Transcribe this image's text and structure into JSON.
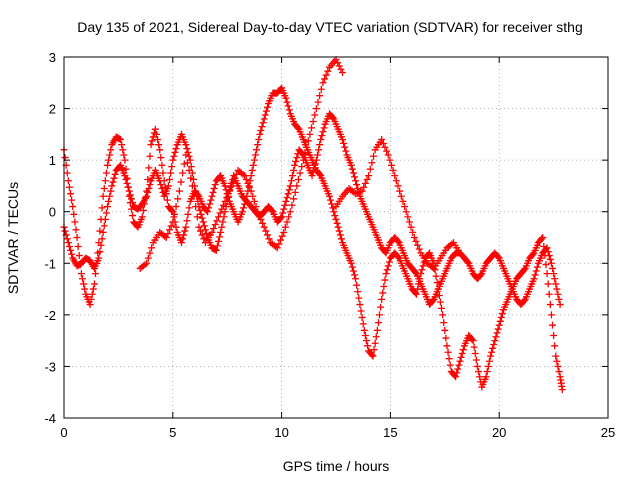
{
  "chart_data": {
    "type": "scatter",
    "title": "Day 135 of 2021, Sidereal Day-to-day VTEC variation (SDTVAR) for receiver sthg",
    "xlabel": "GPS time / hours",
    "ylabel": "SDTVAR / TECUs",
    "xlim": [
      0,
      25
    ],
    "ylim": [
      -4,
      3
    ],
    "xticks": [
      "0",
      "5",
      "10",
      "15",
      "20",
      "25"
    ],
    "yticks": [
      "-4",
      "-3",
      "-2",
      "-1",
      "0",
      "1",
      "2",
      "3"
    ],
    "grid": true,
    "marker": "plus",
    "series": [
      {
        "name": "SDTVAR",
        "color": "#ff0000",
        "traces": [
          {
            "x": [
              0.0,
              0.2,
              0.4,
              0.6,
              0.8,
              1.0,
              1.2,
              1.4,
              1.6,
              1.8,
              2.0,
              2.2,
              2.4,
              2.6,
              2.8,
              3.0,
              3.2,
              3.4,
              3.6,
              3.8,
              4.0,
              4.2,
              4.4,
              4.6,
              4.8,
              5.0,
              5.2,
              5.4,
              5.6,
              5.8,
              6.0,
              6.2,
              6.4,
              6.6,
              6.8,
              7.0,
              7.2,
              7.4,
              7.6,
              7.8,
              8.0,
              8.2,
              8.4,
              8.6,
              8.8,
              9.0,
              9.2,
              9.4,
              9.6,
              9.8,
              10.0,
              10.2,
              10.4,
              10.6,
              10.8,
              11.0,
              11.2,
              11.4,
              11.6,
              11.8,
              12.0,
              12.2,
              12.4,
              12.6,
              12.8,
              13.0,
              13.2,
              13.4,
              13.6,
              13.8,
              14.0,
              14.2,
              14.4,
              14.6,
              14.8,
              15.0,
              15.2,
              15.4,
              15.6,
              15.8,
              16.0,
              16.2,
              16.4,
              16.6,
              16.8,
              17.0,
              17.2,
              17.4,
              17.6,
              17.8,
              18.0,
              18.2,
              18.4,
              18.6,
              18.8,
              19.0,
              19.2,
              19.4,
              19.6,
              19.8,
              20.0,
              20.2,
              20.4,
              20.6,
              20.8,
              21.0,
              21.2,
              21.4,
              21.6,
              21.8,
              22.0,
              22.2,
              22.4,
              22.6,
              22.8,
              22.9
            ],
            "y": [
              1.2,
              0.6,
              0.1,
              -0.5,
              -1.2,
              -1.6,
              -1.8,
              -1.4,
              -0.6,
              0.3,
              0.9,
              1.3,
              1.45,
              1.4,
              1.0,
              0.3,
              -0.2,
              -0.3,
              -0.1,
              0.4,
              1.3,
              1.6,
              1.2,
              0.6,
              0.1,
              0.0,
              -0.4,
              -0.6,
              -0.3,
              0.2,
              0.4,
              0.3,
              0.1,
              0.0,
              0.3,
              0.6,
              0.7,
              0.5,
              0.2,
              0.0,
              -0.2,
              0.0,
              0.3,
              0.7,
              1.1,
              1.5,
              1.8,
              2.1,
              2.3,
              2.3,
              2.4,
              2.2,
              1.9,
              1.7,
              1.6,
              1.4,
              1.2,
              1.0,
              0.8,
              0.7,
              0.5,
              0.3,
              0.0,
              -0.3,
              -0.6,
              -0.8,
              -1.0,
              -1.3,
              -1.8,
              -2.3,
              -2.7,
              -2.8,
              -2.3,
              -1.7,
              -1.2,
              -0.9,
              -0.8,
              -0.9,
              -1.1,
              -1.3,
              -1.5,
              -1.6,
              -1.2,
              -0.9,
              -0.8,
              -1.0,
              -1.5,
              -2.0,
              -2.6,
              -3.1,
              -3.2,
              -2.9,
              -2.6,
              -2.4,
              -2.5,
              -3.0,
              -3.4,
              -3.2,
              -2.8,
              -2.5,
              -2.2,
              -1.9,
              -1.7,
              -1.5,
              -1.3,
              -1.2,
              -1.1,
              -0.9,
              -0.8,
              -0.6,
              -0.5,
              -1.2,
              -2.0,
              -2.8,
              -3.2,
              -3.45
            ]
          },
          {
            "x": [
              0.0,
              0.2,
              0.4,
              0.6,
              0.8,
              1.0,
              1.2,
              1.4,
              1.6,
              1.8,
              2.0,
              2.2,
              2.4,
              2.6,
              2.8,
              3.0,
              3.2,
              3.4,
              3.6,
              3.8,
              4.0,
              4.2,
              4.4,
              4.6,
              4.8,
              5.0,
              5.2,
              5.4,
              5.6,
              5.8,
              6.0,
              6.2,
              6.4,
              6.6,
              6.8,
              7.0,
              7.2,
              7.4,
              7.6,
              7.8,
              8.0,
              8.2,
              8.4,
              8.6,
              8.8,
              9.0,
              9.2,
              9.4,
              9.6,
              9.8,
              10.0,
              10.2,
              10.4,
              10.6,
              10.8,
              11.0,
              11.2,
              11.4,
              11.6,
              11.8,
              12.0,
              12.2,
              12.4,
              12.6,
              12.8,
              13.0,
              13.2,
              13.4,
              13.6,
              13.8,
              14.0,
              14.2,
              14.4,
              14.6,
              14.8,
              15.0,
              15.2,
              15.4,
              15.6,
              15.8,
              16.0,
              16.2,
              16.4,
              16.6,
              16.8,
              17.0,
              17.2,
              17.4,
              17.6,
              17.8,
              18.0,
              18.2,
              18.4,
              18.6,
              18.8,
              19.0,
              19.2,
              19.4,
              19.6,
              19.8,
              20.0,
              20.2,
              20.4,
              20.6,
              20.8,
              21.0,
              21.2,
              21.4,
              21.6,
              21.8,
              22.0,
              22.2,
              22.4,
              22.6,
              22.8
            ],
            "y": [
              -0.3,
              -0.6,
              -0.9,
              -1.05,
              -1.0,
              -0.9,
              -0.95,
              -1.1,
              -0.9,
              -0.4,
              0.1,
              0.5,
              0.8,
              0.9,
              0.7,
              0.4,
              0.1,
              0.05,
              0.15,
              0.3,
              0.6,
              0.8,
              0.6,
              0.3,
              0.5,
              1.0,
              1.3,
              1.5,
              1.3,
              1.0,
              0.5,
              0.1,
              -0.2,
              -0.5,
              -0.7,
              -0.75,
              -0.4,
              0.0,
              0.4,
              0.7,
              0.5,
              0.3,
              0.2,
              0.1,
              0.0,
              -0.1,
              0.0,
              0.1,
              0.0,
              -0.2,
              -0.1,
              0.2,
              0.5,
              0.9,
              1.2,
              1.1,
              0.9,
              0.7,
              1.0,
              1.4,
              1.7,
              1.9,
              1.8,
              1.6,
              1.4,
              1.1,
              0.9,
              0.6,
              0.3,
              0.1,
              -0.1,
              -0.3,
              -0.5,
              -0.7,
              -0.8,
              -0.6,
              -0.5,
              -0.6,
              -0.8,
              -1.0,
              -1.1,
              -1.2,
              -1.4,
              -1.6,
              -1.8,
              -1.7,
              -1.5,
              -1.3,
              -1.1,
              -0.9,
              -0.8,
              -0.8,
              -0.9,
              -1.0,
              -1.2,
              -1.3,
              -1.2,
              -1.0,
              -0.9,
              -0.8,
              -0.9,
              -1.1,
              -1.3,
              -1.5,
              -1.7,
              -1.8,
              -1.7,
              -1.5,
              -1.3,
              -1.0,
              -0.8,
              -0.7,
              -1.0,
              -1.4,
              -1.8
            ]
          },
          {
            "x": [
              3.5,
              3.8,
              4.1,
              4.4,
              4.7,
              5.0,
              5.3,
              5.6,
              5.9,
              6.2,
              6.5,
              6.8,
              7.1,
              7.4,
              7.7,
              8.0,
              8.3,
              8.6,
              8.9,
              9.2,
              9.5,
              9.8,
              10.1,
              10.4,
              10.7,
              11.0,
              11.3,
              11.6,
              11.9,
              12.2,
              12.5,
              12.8
            ],
            "y": [
              -1.1,
              -1.0,
              -0.6,
              -0.4,
              -0.5,
              -0.2,
              0.4,
              1.1,
              0.5,
              -0.3,
              -0.6,
              -0.4,
              -0.1,
              0.2,
              0.5,
              0.8,
              0.7,
              0.4,
              0.0,
              -0.3,
              -0.6,
              -0.7,
              -0.4,
              0.0,
              0.5,
              1.0,
              1.5,
              2.0,
              2.5,
              2.8,
              2.95,
              2.7
            ]
          },
          {
            "x": [
              12.5,
              12.8,
              13.1,
              13.4,
              13.7,
              14.0,
              14.3,
              14.6,
              14.9,
              15.2,
              15.5,
              15.8,
              16.1,
              16.4,
              16.7,
              17.0,
              17.3,
              17.6,
              17.9,
              18.2
            ],
            "y": [
              0.1,
              0.3,
              0.45,
              0.35,
              0.4,
              0.7,
              1.2,
              1.4,
              1.1,
              0.7,
              0.3,
              -0.1,
              -0.5,
              -0.8,
              -1.0,
              -1.1,
              -0.9,
              -0.7,
              -0.6,
              -0.8
            ]
          }
        ]
      }
    ]
  }
}
